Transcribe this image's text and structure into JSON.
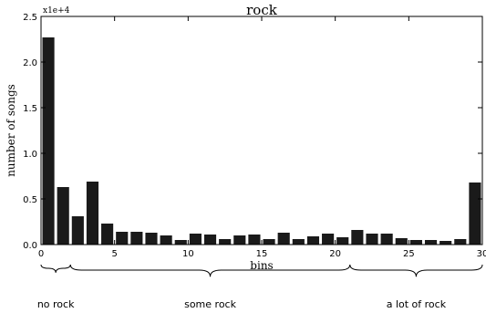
{
  "chart_data": {
    "type": "bar",
    "title": "rock",
    "xlabel": "bins",
    "ylabel": "number of songs",
    "y_multiplier": "x1e+4",
    "xlim": [
      0,
      30
    ],
    "ylim": [
      0,
      2.5
    ],
    "xticks": [
      "0",
      "5",
      "10",
      "15",
      "20",
      "25",
      "30"
    ],
    "yticks": [
      "0.0",
      "0.5",
      "1.0",
      "1.5",
      "2.0",
      "2.5"
    ],
    "bin_width": 1,
    "x": [
      0,
      1,
      2,
      3,
      4,
      5,
      6,
      7,
      8,
      9,
      10,
      11,
      12,
      13,
      14,
      15,
      16,
      17,
      18,
      19,
      20,
      21,
      22,
      23,
      24,
      25,
      26,
      27,
      28,
      29
    ],
    "values": [
      2.27,
      0.63,
      0.31,
      0.69,
      0.23,
      0.14,
      0.14,
      0.13,
      0.1,
      0.05,
      0.12,
      0.11,
      0.06,
      0.1,
      0.11,
      0.06,
      0.13,
      0.06,
      0.09,
      0.12,
      0.08,
      0.16,
      0.12,
      0.12,
      0.07,
      0.05,
      0.05,
      0.04,
      0.06,
      0.68
    ],
    "bar_color": "#1a1a1a",
    "grid": false
  },
  "annotations": [
    {
      "label": "no rock",
      "from": 0,
      "to": 2
    },
    {
      "label": "some rock",
      "from": 2,
      "to": 21
    },
    {
      "label": "a lot of rock",
      "from": 21,
      "to": 30
    }
  ]
}
